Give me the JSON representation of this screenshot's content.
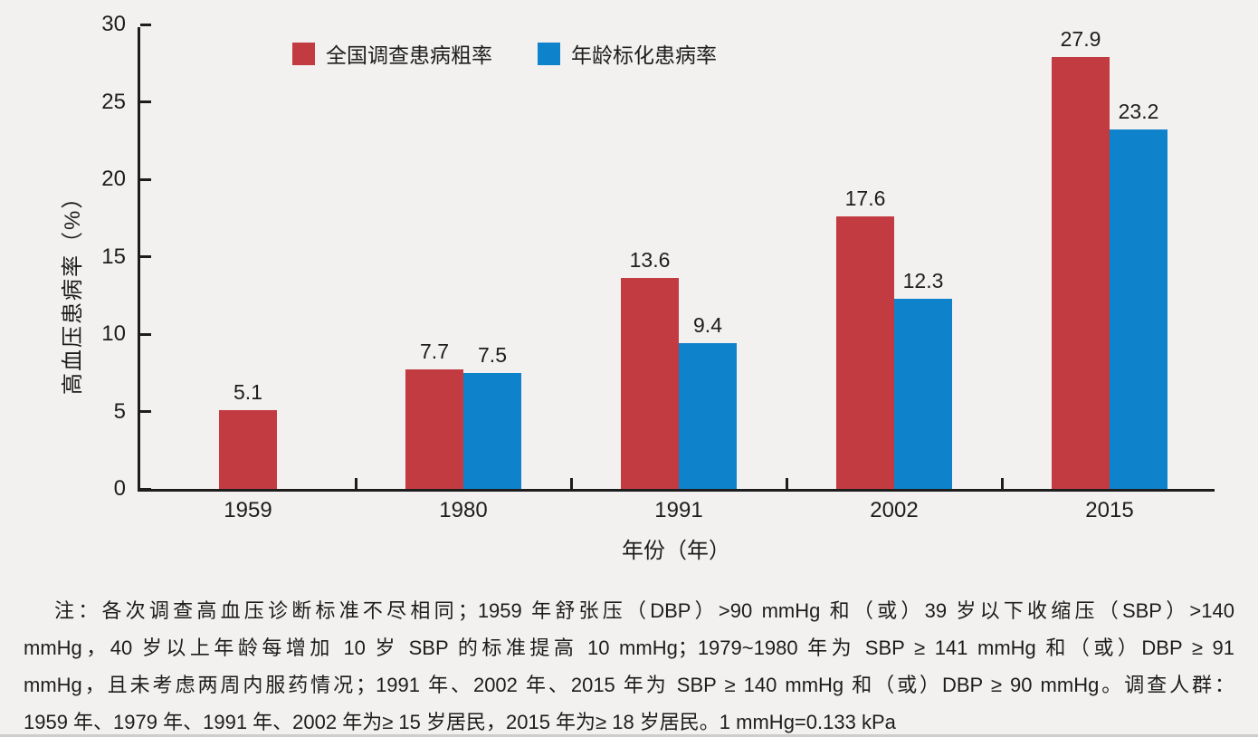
{
  "chart_data": {
    "type": "bar",
    "title": "",
    "categories": [
      "1959",
      "1980",
      "1991",
      "2002",
      "2015"
    ],
    "series": [
      {
        "name": "全国调查患病粗率",
        "color": "#c23b41",
        "values": [
          5.1,
          7.7,
          13.6,
          17.6,
          27.9
        ]
      },
      {
        "name": "年龄标化患病率",
        "color": "#0e82ca",
        "values": [
          null,
          7.5,
          9.4,
          12.3,
          23.2
        ]
      }
    ],
    "xlabel": "年份（年）",
    "ylabel": "高血压患病率（%）",
    "ylim": [
      0,
      30
    ],
    "yticks": [
      0,
      5,
      10,
      15,
      20,
      25,
      30
    ],
    "grid": false,
    "legend_position": "top-inside"
  },
  "colors": {
    "background": "#f3f1f0",
    "axis": "#1d1d1d",
    "text": "#1d1d1d",
    "series_red": "#c23b41",
    "series_blue": "#0e82ca"
  },
  "note": {
    "lines": [
      "注：各次调查高血压诊断标准不尽相同；1959 年舒张压（DBP）>90 mmHg 和（或）39 岁以下收缩压（SBP）>140",
      "mmHg，40 岁以上年龄每增加 10 岁 SBP 的标准提高 10 mmHg；1979~1980 年为 SBP ≥ 141 mmHg 和（或）DBP ≥ 91",
      "mmHg，且未考虑两周内服药情况；1991 年、2002 年、2015 年为 SBP ≥ 140 mmHg 和（或）DBP ≥ 90 mmHg。调查人群：",
      "1959 年、1979 年、1991 年、2002 年为≥ 15 岁居民，2015 年为≥ 18 岁居民。1 mmHg=0.133 kPa"
    ]
  }
}
